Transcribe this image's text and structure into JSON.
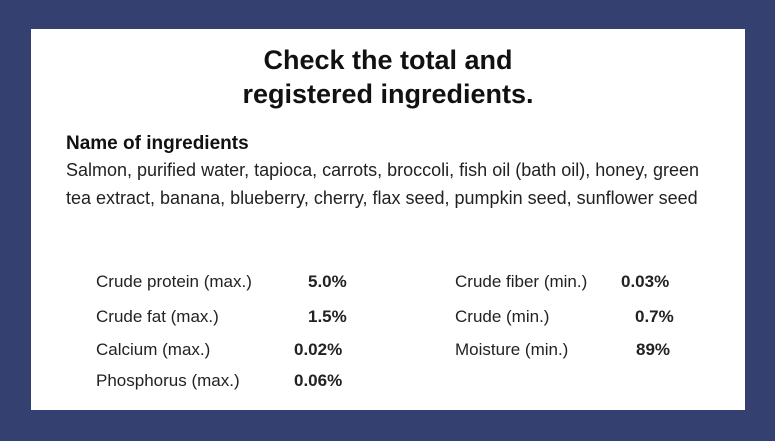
{
  "title_line1": "Check the total and",
  "title_line2": "registered ingredients.",
  "ingredients_heading": "Name of ingredients",
  "ingredients_text": "Salmon, purified water, tapioca, carrots, broccoli, fish oil (bath oil), honey, green tea extract, banana, blueberry, cherry, flax seed, pumpkin seed, sunflower seed",
  "analysis_left": [
    {
      "label": "Crude protein (max.)",
      "value": "5.0%"
    },
    {
      "label": "Crude fat (max.)",
      "value": "1.5%"
    },
    {
      "label": "Calcium (max.)",
      "value": "0.02%"
    },
    {
      "label": "Phosphorus (max.)",
      "value": "0.06%"
    }
  ],
  "analysis_right": [
    {
      "label": "Crude fiber (min.)",
      "value": "0.03%"
    },
    {
      "label": "Crude (min.)",
      "value": "0.7%"
    },
    {
      "label": "Moisture (min.)",
      "value": "89%"
    }
  ],
  "colors": {
    "frame": "#34406f",
    "card": "#ffffff"
  }
}
